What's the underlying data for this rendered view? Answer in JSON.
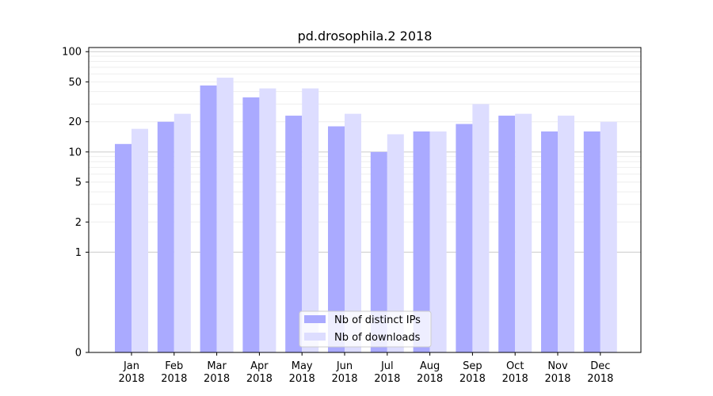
{
  "chart_data": {
    "type": "bar",
    "title": "pd.drosophila.2 2018",
    "xlabel": "",
    "ylabel": "",
    "y_scale": "symlog",
    "ylim": [
      0,
      110
    ],
    "y_ticks": [
      0,
      1,
      2,
      5,
      10,
      20,
      50,
      100
    ],
    "categories": [
      [
        "Jan",
        "2018"
      ],
      [
        "Feb",
        "2018"
      ],
      [
        "Mar",
        "2018"
      ],
      [
        "Apr",
        "2018"
      ],
      [
        "May",
        "2018"
      ],
      [
        "Jun",
        "2018"
      ],
      [
        "Jul",
        "2018"
      ],
      [
        "Aug",
        "2018"
      ],
      [
        "Sep",
        "2018"
      ],
      [
        "Oct",
        "2018"
      ],
      [
        "Nov",
        "2018"
      ],
      [
        "Dec",
        "2018"
      ]
    ],
    "series": [
      {
        "name": "Nb of distinct IPs",
        "color": "#aaaaff",
        "values": [
          12,
          20,
          46,
          35,
          23,
          18,
          10,
          16,
          19,
          23,
          16,
          16
        ]
      },
      {
        "name": "Nb of downloads",
        "color": "#ddddff",
        "values": [
          17,
          24,
          55,
          43,
          43,
          24,
          15,
          16,
          30,
          24,
          23,
          20
        ]
      }
    ],
    "grid": true,
    "legend": "bottom-center"
  }
}
